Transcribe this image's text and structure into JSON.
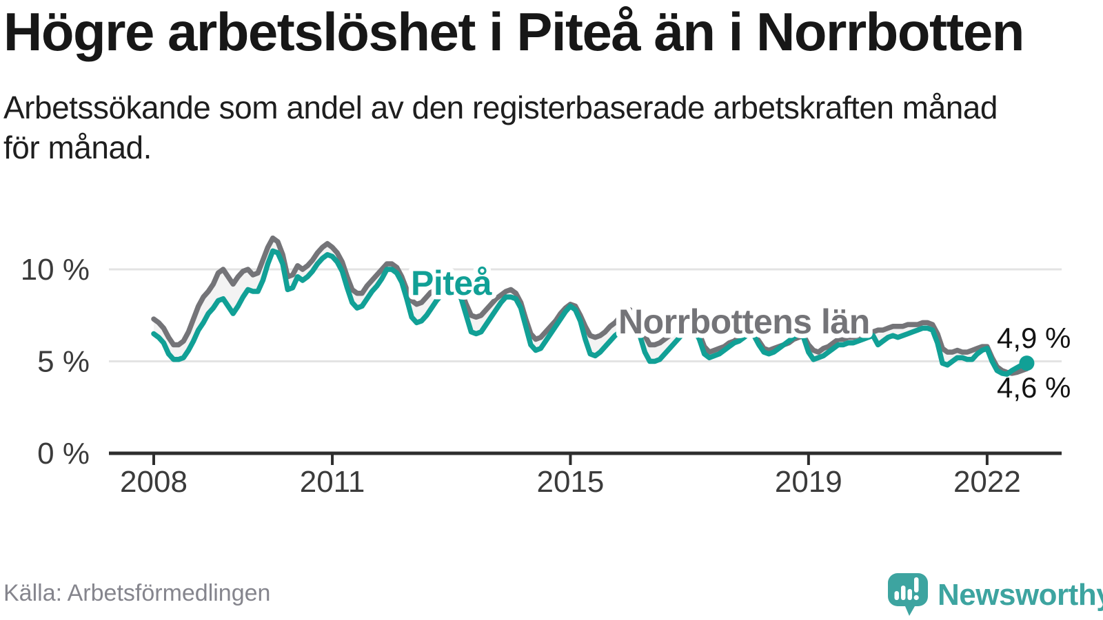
{
  "title": "Högre arbetslöshet i Piteå än i Norrbotten",
  "subtitle_lines": [
    "Arbetssökande som andel av den registerbaserade arbetskraften månad",
    "för månad."
  ],
  "footer": {
    "source": "Källa: Arbetsförmedlingen",
    "brand": "Newsworthy"
  },
  "colors": {
    "pitea": "#11A096",
    "norrbotten": "#747478",
    "fill_between": "#F3F3F3",
    "grid": "#E3E3E3",
    "axis": "#2D2D2D",
    "logo": "#3DA4A0"
  },
  "chart_data": {
    "type": "line",
    "title": "Högre arbetslöshet i Piteå än i Norrbotten",
    "xlabel": "",
    "ylabel": "Arbetssökande som andel av den registerbaserade arbetskraften",
    "frequency": "monthly",
    "start_year": 2008,
    "start_month": 1,
    "end_year": 2022,
    "end_month": 9,
    "ylim": [
      0,
      12.3
    ],
    "grid": "horizontal",
    "legend": "inline-labels",
    "x_ticks": [
      {
        "year": 2008,
        "label": "2008"
      },
      {
        "year": 2011,
        "label": "2011"
      },
      {
        "year": 2015,
        "label": "2015"
      },
      {
        "year": 2019,
        "label": "2019"
      },
      {
        "year": 2022,
        "label": "2022"
      }
    ],
    "y_ticks": [
      {
        "value": 0,
        "label": "0 %"
      },
      {
        "value": 5,
        "label": "5 %"
      },
      {
        "value": 10,
        "label": "10 %"
      }
    ],
    "series": [
      {
        "name": "Piteå",
        "color": "#11A096",
        "end_label": "4,9 %",
        "end_dot": true,
        "values": [
          6.5,
          6.3,
          6.0,
          5.4,
          5.1,
          5.1,
          5.2,
          5.6,
          6.1,
          6.7,
          7.1,
          7.6,
          7.9,
          8.3,
          8.4,
          8.0,
          7.6,
          8.0,
          8.5,
          8.9,
          8.8,
          8.8,
          9.4,
          10.3,
          11.0,
          10.9,
          10.3,
          8.9,
          9.0,
          9.6,
          9.4,
          9.6,
          9.9,
          10.3,
          10.6,
          10.8,
          10.7,
          10.4,
          9.9,
          9.0,
          8.2,
          7.9,
          8.0,
          8.4,
          8.8,
          9.1,
          9.5,
          10.0,
          10.0,
          9.8,
          9.3,
          8.4,
          7.4,
          7.1,
          7.2,
          7.5,
          7.9,
          8.3,
          8.6,
          8.8,
          9.0,
          8.9,
          8.4,
          7.5,
          6.6,
          6.5,
          6.6,
          7.0,
          7.4,
          7.8,
          8.2,
          8.5,
          8.5,
          8.4,
          7.9,
          6.9,
          5.9,
          5.6,
          5.7,
          6.1,
          6.5,
          6.9,
          7.3,
          7.7,
          8.0,
          7.8,
          7.2,
          6.2,
          5.4,
          5.3,
          5.5,
          5.8,
          6.1,
          6.4,
          6.6,
          6.8,
          6.9,
          6.9,
          6.4,
          5.5,
          5.0,
          5.0,
          5.1,
          5.4,
          5.7,
          6.0,
          6.3,
          6.6,
          6.8,
          6.7,
          6.2,
          5.4,
          5.2,
          5.3,
          5.4,
          5.6,
          5.8,
          6.0,
          6.1,
          6.3,
          6.5,
          6.4,
          5.9,
          5.5,
          5.4,
          5.5,
          5.7,
          5.9,
          6.1,
          6.3,
          6.5,
          6.3,
          5.5,
          5.1,
          5.2,
          5.3,
          5.5,
          5.7,
          5.9,
          5.9,
          6.0,
          6.0,
          6.1,
          6.2,
          6.3,
          6.4,
          5.9,
          6.1,
          6.3,
          6.4,
          6.3,
          6.4,
          6.5,
          6.6,
          6.7,
          6.8,
          6.8,
          6.7,
          6.0,
          4.9,
          4.8,
          5.0,
          5.2,
          5.2,
          5.1,
          5.1,
          5.4,
          5.6,
          5.7,
          5.0,
          4.5,
          4.35,
          4.3,
          4.5,
          4.65,
          4.8,
          4.9
        ]
      },
      {
        "name": "Norrbottens län",
        "color": "#747478",
        "end_label": "4,6 %",
        "end_dot": false,
        "values": [
          7.3,
          7.1,
          6.8,
          6.3,
          5.9,
          5.9,
          6.1,
          6.6,
          7.3,
          8.0,
          8.5,
          8.8,
          9.2,
          9.8,
          10.0,
          9.6,
          9.2,
          9.6,
          9.9,
          10.0,
          9.7,
          9.8,
          10.5,
          11.2,
          11.7,
          11.5,
          10.8,
          9.6,
          9.7,
          10.2,
          10.0,
          10.2,
          10.5,
          10.9,
          11.2,
          11.4,
          11.2,
          10.9,
          10.4,
          9.6,
          8.9,
          8.7,
          8.7,
          9.1,
          9.4,
          9.7,
          10.0,
          10.3,
          10.3,
          10.1,
          9.6,
          8.9,
          8.3,
          8.1,
          8.2,
          8.5,
          8.8,
          9.1,
          9.3,
          9.4,
          9.4,
          9.2,
          8.8,
          8.1,
          7.5,
          7.4,
          7.5,
          7.8,
          8.1,
          8.4,
          8.6,
          8.8,
          8.9,
          8.7,
          8.2,
          7.3,
          6.5,
          6.2,
          6.3,
          6.6,
          6.9,
          7.2,
          7.6,
          7.9,
          8.1,
          8.0,
          7.5,
          6.9,
          6.4,
          6.3,
          6.4,
          6.6,
          6.9,
          7.1,
          7.4,
          7.6,
          7.8,
          7.6,
          7.1,
          6.4,
          5.9,
          5.9,
          6.0,
          6.2,
          6.4,
          6.6,
          6.9,
          7.1,
          7.2,
          7.0,
          6.5,
          5.8,
          5.5,
          5.6,
          5.7,
          5.8,
          6.0,
          6.1,
          6.3,
          6.4,
          6.6,
          6.5,
          6.1,
          5.7,
          5.6,
          5.7,
          5.8,
          5.9,
          6.0,
          6.2,
          6.3,
          6.4,
          5.9,
          5.6,
          5.5,
          5.7,
          5.8,
          6.0,
          6.2,
          6.2,
          6.3,
          6.3,
          6.4,
          6.5,
          6.6,
          6.6,
          6.7,
          6.7,
          6.8,
          6.9,
          6.9,
          6.9,
          7.0,
          7.0,
          7.0,
          7.1,
          7.1,
          7.0,
          6.5,
          5.7,
          5.5,
          5.5,
          5.6,
          5.5,
          5.5,
          5.6,
          5.7,
          5.8,
          5.8,
          5.2,
          4.7,
          4.5,
          4.4,
          4.35,
          4.4,
          4.5,
          4.6
        ]
      }
    ]
  }
}
